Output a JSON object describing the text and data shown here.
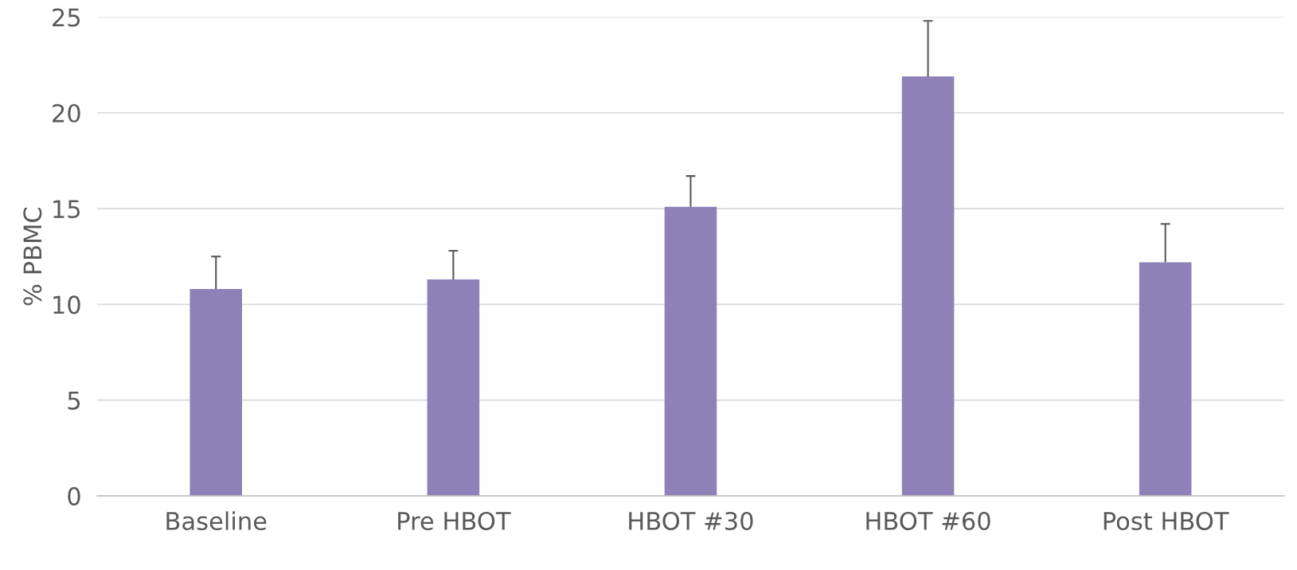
{
  "chart_data": {
    "type": "bar",
    "ylabel": "% PBMC",
    "categories": [
      "Baseline",
      "Pre HBOT",
      "HBOT #30",
      "HBOT #60",
      "Post HBOT"
    ],
    "values": [
      10.8,
      11.3,
      15.1,
      21.9,
      12.2
    ],
    "errors": [
      [
        10.8,
        12.5
      ],
      [
        11.3,
        12.8
      ],
      [
        15.1,
        16.7
      ],
      [
        21.9,
        24.8
      ],
      [
        12.2,
        14.2
      ]
    ],
    "color": "#8e81b8",
    "ylim": [
      0,
      25
    ],
    "yticks": [
      0,
      5,
      10,
      15,
      20,
      25
    ],
    "grid": "y"
  }
}
